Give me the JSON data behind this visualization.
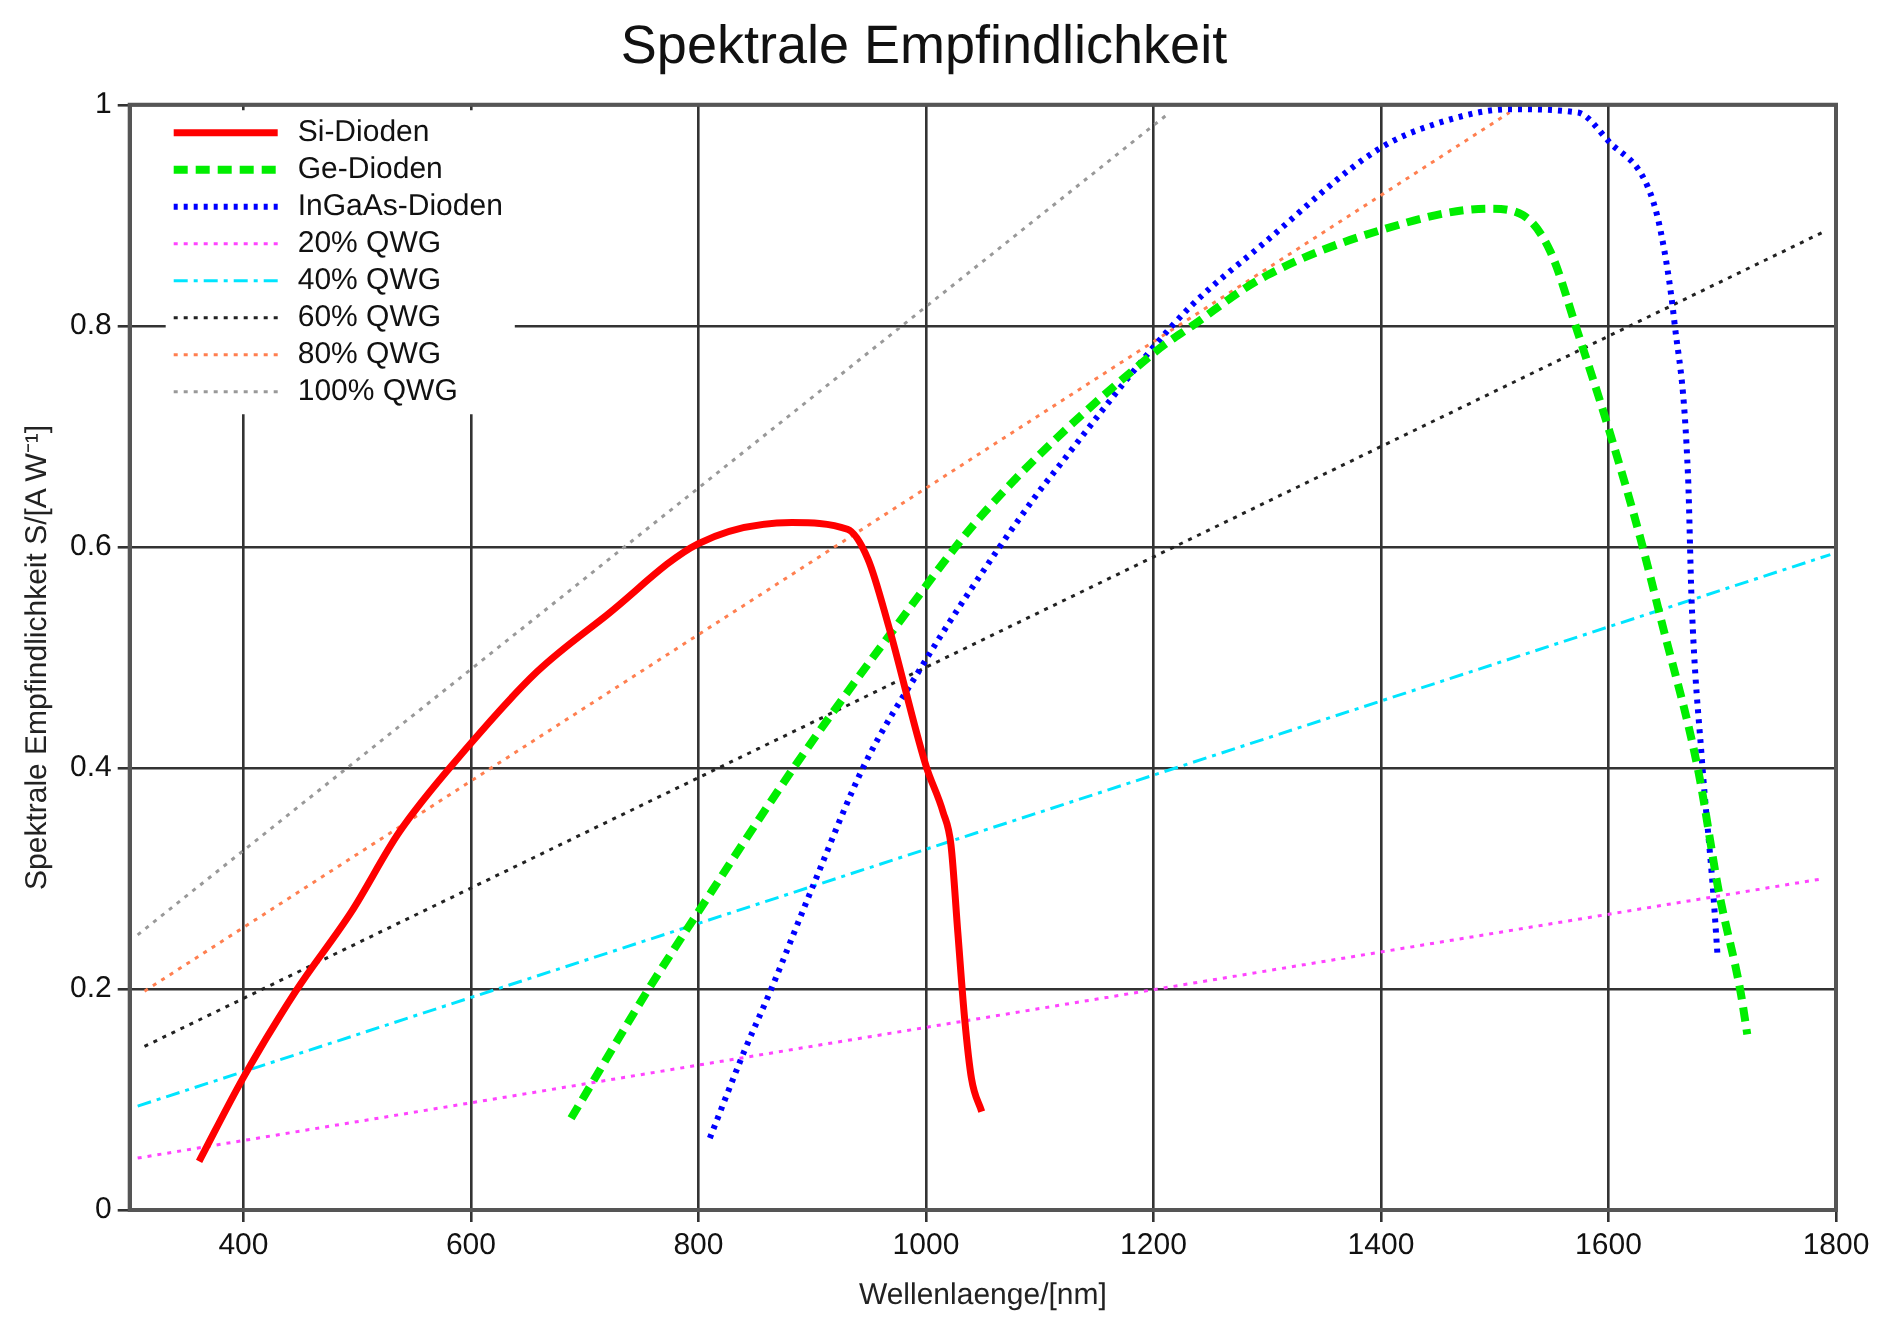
{
  "chart_data": {
    "type": "line",
    "title": "Spektrale Empfindlichkeit",
    "xlabel": "Wellenlaenge/[nm]",
    "ylabel": "Spektrale Empfindlichkeit S/[A W⁻¹]",
    "xlim": [
      300,
      1800
    ],
    "xticks": [
      400,
      600,
      800,
      1000,
      1200,
      1400,
      1600,
      1800
    ],
    "ylim": [
      0,
      1
    ],
    "yticks": [
      0,
      0.2,
      0.4,
      0.6,
      0.8,
      1
    ],
    "grid": true,
    "legend": "top left",
    "marker": "none",
    "series": [
      {
        "name": "Si-Dioden",
        "color": "#ff0000",
        "line_style": "solid",
        "x": [
          361,
          400,
          446,
          495,
          537,
          598,
          658,
          719,
          800,
          882,
          931,
          949,
          967,
          1000,
          1015,
          1022,
          1028,
          1034,
          1040,
          1049
        ],
        "values": [
          0.044,
          0.12,
          0.198,
          0.27,
          0.342,
          0.42,
          0.487,
          0.538,
          0.603,
          0.622,
          0.616,
          0.589,
          0.529,
          0.402,
          0.36,
          0.33,
          0.251,
          0.173,
          0.119,
          0.089
        ]
      },
      {
        "name": "Ge-Dioden",
        "color": "#00ee00",
        "line_style": "dashed",
        "x": [
          688,
          755,
          800,
          885,
          970,
          1052,
          1201,
          1234,
          1295,
          1398,
          1495,
          1525,
          1549,
          1573,
          1601,
          1628,
          1646,
          1679,
          1697,
          1716,
          1722
        ],
        "values": [
          0.083,
          0.198,
          0.27,
          0.402,
          0.523,
          0.632,
          0.776,
          0.8,
          0.843,
          0.886,
          0.906,
          0.9,
          0.867,
          0.794,
          0.704,
          0.608,
          0.535,
          0.397,
          0.288,
          0.198,
          0.159
        ]
      },
      {
        "name": "InGaAs-Dioden",
        "color": "#0000ff",
        "line_style": "dotted",
        "x": [
          810,
          840,
          864,
          901,
          946,
          997,
          1034,
          1095,
          1113,
          1201,
          1234,
          1295,
          1398,
          1452,
          1513,
          1573,
          1601,
          1634,
          1646,
          1658,
          1670,
          1673,
          1682,
          1692,
          1696
        ],
        "values": [
          0.065,
          0.143,
          0.2,
          0.294,
          0.403,
          0.493,
          0.553,
          0.644,
          0.668,
          0.782,
          0.819,
          0.873,
          0.96,
          0.984,
          0.996,
          0.993,
          0.966,
          0.927,
          0.885,
          0.803,
          0.662,
          0.553,
          0.409,
          0.288,
          0.228
        ]
      },
      {
        "name": "20% QWG",
        "color": "#ff44ff",
        "line_style": "dotted",
        "x": [
          307,
          1790
        ],
        "values": [
          0.047,
          0.3
        ]
      },
      {
        "name": "40% QWG",
        "color": "#00e5ff",
        "line_style": "dashdot",
        "x": [
          307,
          1795
        ],
        "values": [
          0.094,
          0.593
        ]
      },
      {
        "name": "60% QWG",
        "color": "#222222",
        "line_style": "dotted",
        "x": [
          313,
          1791
        ],
        "values": [
          0.148,
          0.886
        ]
      },
      {
        "name": "80% QWG",
        "color": "#ff7f50",
        "line_style": "dotted",
        "x": [
          313,
          1513
        ],
        "values": [
          0.198,
          0.993
        ]
      },
      {
        "name": "100% QWG",
        "color": "#999999",
        "line_style": "dotted",
        "x": [
          307,
          1213
        ],
        "values": [
          0.249,
          0.992
        ]
      }
    ]
  }
}
